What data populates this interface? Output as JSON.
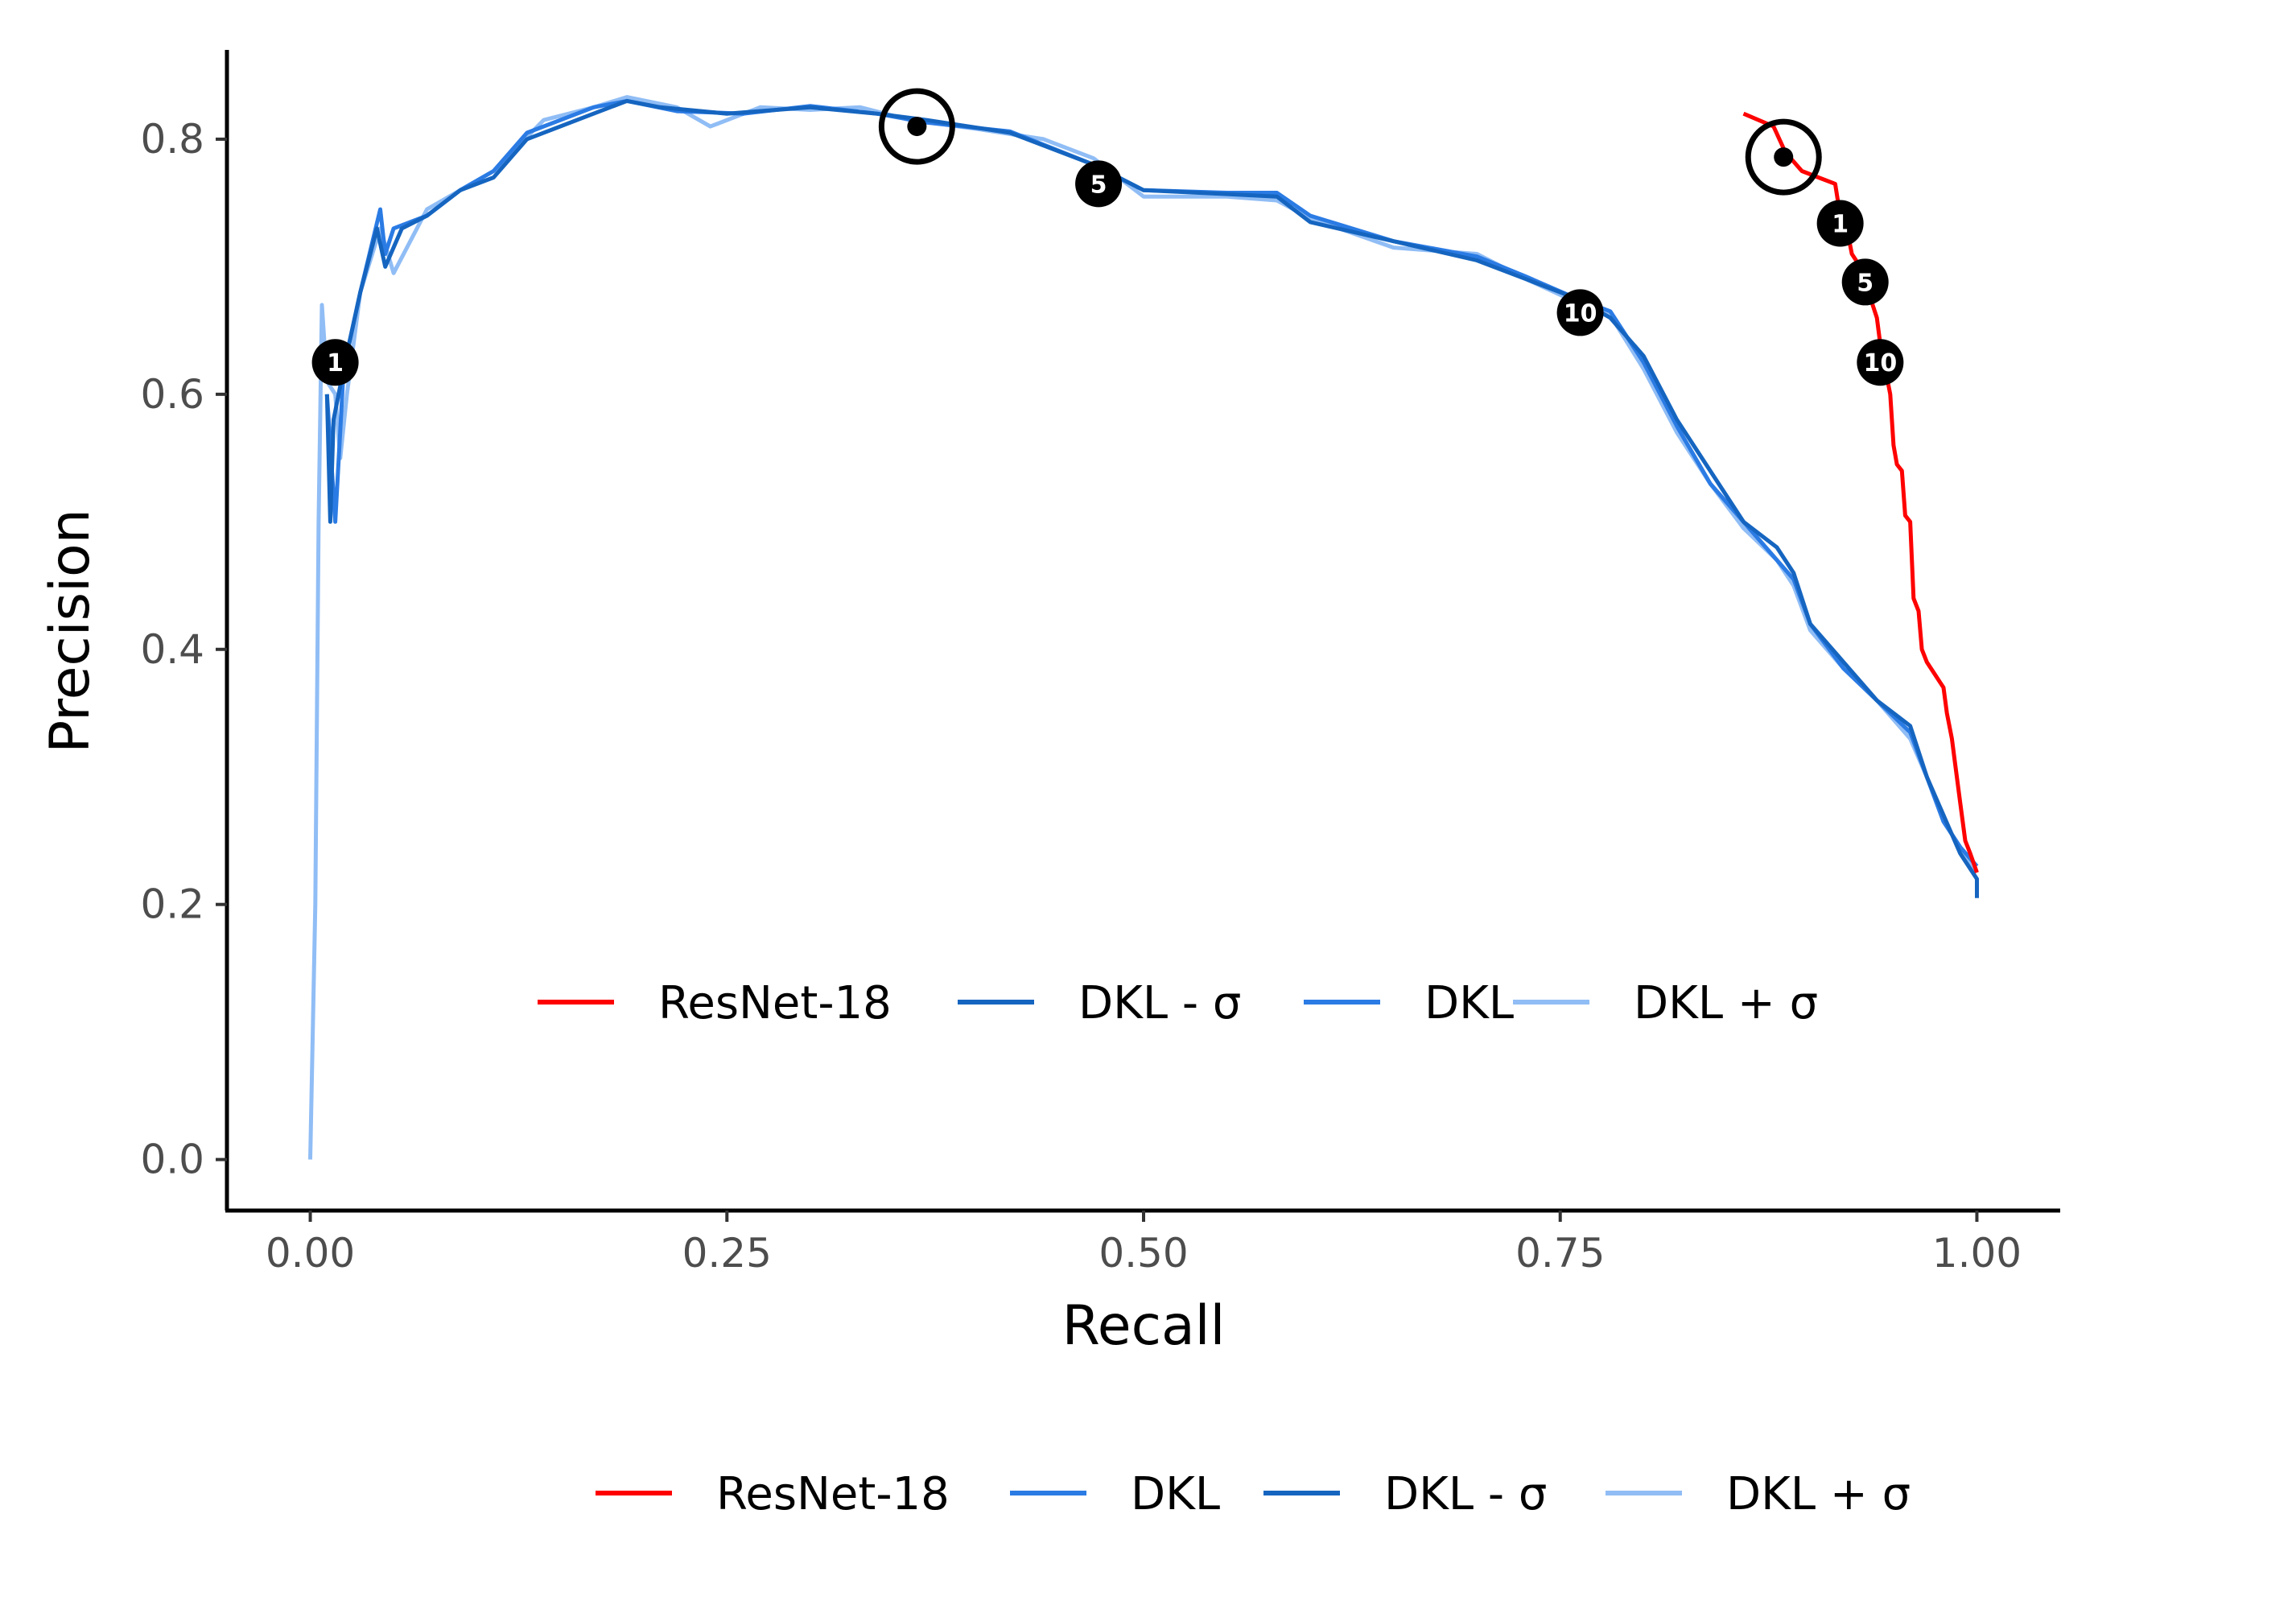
{
  "chart_data": {
    "type": "line",
    "xlabel": "Recall",
    "ylabel": "Precision",
    "xlim": [
      -0.05,
      1.05
    ],
    "ylim": [
      -0.04,
      0.87
    ],
    "x_ticks": [
      "0.00",
      "0.25",
      "0.50",
      "0.75",
      "1.00"
    ],
    "x_tick_values": [
      0,
      0.25,
      0.5,
      0.75,
      1.0
    ],
    "y_ticks": [
      "0.0",
      "0.2",
      "0.4",
      "0.6",
      "0.8"
    ],
    "y_tick_values": [
      0,
      0.2,
      0.4,
      0.6,
      0.8
    ],
    "grid": false,
    "series": [
      {
        "name": "ResNet-18",
        "color": "#ff0000",
        "points": [
          [
            0.86,
            0.82
          ],
          [
            0.878,
            0.81
          ],
          [
            0.885,
            0.79
          ],
          [
            0.895,
            0.775
          ],
          [
            0.905,
            0.77
          ],
          [
            0.915,
            0.765
          ],
          [
            0.918,
            0.74
          ],
          [
            0.922,
            0.73
          ],
          [
            0.925,
            0.71
          ],
          [
            0.93,
            0.7
          ],
          [
            0.935,
            0.68
          ],
          [
            0.94,
            0.66
          ],
          [
            0.942,
            0.64
          ],
          [
            0.945,
            0.62
          ],
          [
            0.948,
            0.6
          ],
          [
            0.95,
            0.56
          ],
          [
            0.952,
            0.545
          ],
          [
            0.955,
            0.54
          ],
          [
            0.957,
            0.505
          ],
          [
            0.96,
            0.5
          ],
          [
            0.962,
            0.44
          ],
          [
            0.965,
            0.43
          ],
          [
            0.967,
            0.4
          ],
          [
            0.97,
            0.39
          ],
          [
            0.975,
            0.38
          ],
          [
            0.98,
            0.37
          ],
          [
            0.982,
            0.35
          ],
          [
            0.985,
            0.33
          ],
          [
            0.987,
            0.31
          ],
          [
            0.99,
            0.28
          ],
          [
            0.993,
            0.25
          ],
          [
            0.996,
            0.24
          ],
          [
            1.0,
            0.225
          ]
        ]
      },
      {
        "name": "DKL - σ",
        "color": "#1565c0",
        "points": [
          [
            0.01,
            0.6
          ],
          [
            0.012,
            0.5
          ],
          [
            0.014,
            0.58
          ],
          [
            0.02,
            0.62
          ],
          [
            0.03,
            0.68
          ],
          [
            0.04,
            0.73
          ],
          [
            0.045,
            0.7
          ],
          [
            0.055,
            0.73
          ],
          [
            0.07,
            0.74
          ],
          [
            0.09,
            0.76
          ],
          [
            0.11,
            0.77
          ],
          [
            0.13,
            0.8
          ],
          [
            0.15,
            0.81
          ],
          [
            0.17,
            0.82
          ],
          [
            0.19,
            0.83
          ],
          [
            0.21,
            0.825
          ],
          [
            0.25,
            0.82
          ],
          [
            0.3,
            0.825
          ],
          [
            0.34,
            0.82
          ],
          [
            0.37,
            0.815
          ],
          [
            0.42,
            0.805
          ],
          [
            0.47,
            0.78
          ],
          [
            0.5,
            0.76
          ],
          [
            0.55,
            0.757
          ],
          [
            0.58,
            0.755
          ],
          [
            0.6,
            0.735
          ],
          [
            0.65,
            0.72
          ],
          [
            0.7,
            0.705
          ],
          [
            0.73,
            0.69
          ],
          [
            0.76,
            0.675
          ],
          [
            0.78,
            0.66
          ],
          [
            0.8,
            0.63
          ],
          [
            0.82,
            0.58
          ],
          [
            0.84,
            0.54
          ],
          [
            0.86,
            0.5
          ],
          [
            0.88,
            0.48
          ],
          [
            0.89,
            0.46
          ],
          [
            0.9,
            0.42
          ],
          [
            0.92,
            0.39
          ],
          [
            0.94,
            0.36
          ],
          [
            0.96,
            0.34
          ],
          [
            0.97,
            0.3
          ],
          [
            0.98,
            0.27
          ],
          [
            0.99,
            0.24
          ],
          [
            1.0,
            0.22
          ],
          [
            1.0,
            0.205
          ]
        ]
      },
      {
        "name": "DKL",
        "color": "#2b7be4",
        "points": [
          [
            0.01,
            0.6
          ],
          [
            0.015,
            0.5
          ],
          [
            0.02,
            0.62
          ],
          [
            0.03,
            0.68
          ],
          [
            0.042,
            0.745
          ],
          [
            0.045,
            0.71
          ],
          [
            0.05,
            0.73
          ],
          [
            0.07,
            0.74
          ],
          [
            0.09,
            0.76
          ],
          [
            0.11,
            0.775
          ],
          [
            0.13,
            0.805
          ],
          [
            0.15,
            0.815
          ],
          [
            0.17,
            0.825
          ],
          [
            0.19,
            0.83
          ],
          [
            0.22,
            0.822
          ],
          [
            0.26,
            0.82
          ],
          [
            0.3,
            0.826
          ],
          [
            0.34,
            0.82
          ],
          [
            0.37,
            0.813
          ],
          [
            0.42,
            0.806
          ],
          [
            0.47,
            0.78
          ],
          [
            0.5,
            0.76
          ],
          [
            0.55,
            0.758
          ],
          [
            0.58,
            0.758
          ],
          [
            0.6,
            0.74
          ],
          [
            0.65,
            0.72
          ],
          [
            0.7,
            0.708
          ],
          [
            0.73,
            0.692
          ],
          [
            0.76,
            0.675
          ],
          [
            0.78,
            0.665
          ],
          [
            0.8,
            0.625
          ],
          [
            0.82,
            0.575
          ],
          [
            0.84,
            0.53
          ],
          [
            0.86,
            0.5
          ],
          [
            0.88,
            0.47
          ],
          [
            0.89,
            0.455
          ],
          [
            0.9,
            0.42
          ],
          [
            0.92,
            0.385
          ],
          [
            0.94,
            0.36
          ],
          [
            0.96,
            0.335
          ],
          [
            0.97,
            0.3
          ],
          [
            0.98,
            0.265
          ],
          [
            0.99,
            0.245
          ],
          [
            1.0,
            0.23
          ]
        ]
      },
      {
        "name": "DKL + σ",
        "color": "#90bdf5",
        "points": [
          [
            0.0,
            0.0
          ],
          [
            0.003,
            0.2
          ],
          [
            0.005,
            0.5
          ],
          [
            0.007,
            0.67
          ],
          [
            0.01,
            0.61
          ],
          [
            0.015,
            0.6
          ],
          [
            0.018,
            0.55
          ],
          [
            0.022,
            0.6
          ],
          [
            0.03,
            0.68
          ],
          [
            0.042,
            0.73
          ],
          [
            0.05,
            0.695
          ],
          [
            0.07,
            0.745
          ],
          [
            0.09,
            0.76
          ],
          [
            0.11,
            0.775
          ],
          [
            0.14,
            0.815
          ],
          [
            0.17,
            0.825
          ],
          [
            0.19,
            0.833
          ],
          [
            0.22,
            0.825
          ],
          [
            0.24,
            0.81
          ],
          [
            0.27,
            0.825
          ],
          [
            0.3,
            0.823
          ],
          [
            0.33,
            0.825
          ],
          [
            0.36,
            0.815
          ],
          [
            0.4,
            0.808
          ],
          [
            0.44,
            0.8
          ],
          [
            0.47,
            0.785
          ],
          [
            0.5,
            0.755
          ],
          [
            0.55,
            0.755
          ],
          [
            0.58,
            0.752
          ],
          [
            0.6,
            0.738
          ],
          [
            0.65,
            0.715
          ],
          [
            0.7,
            0.71
          ],
          [
            0.73,
            0.69
          ],
          [
            0.76,
            0.672
          ],
          [
            0.78,
            0.662
          ],
          [
            0.8,
            0.62
          ],
          [
            0.82,
            0.57
          ],
          [
            0.84,
            0.53
          ],
          [
            0.86,
            0.495
          ],
          [
            0.88,
            0.47
          ],
          [
            0.89,
            0.45
          ],
          [
            0.9,
            0.415
          ],
          [
            0.92,
            0.385
          ],
          [
            0.94,
            0.36
          ],
          [
            0.96,
            0.33
          ],
          [
            0.97,
            0.3
          ],
          [
            0.98,
            0.265
          ],
          [
            0.99,
            0.245
          ],
          [
            1.0,
            0.225
          ]
        ]
      }
    ],
    "markers": [
      {
        "series": "DKL",
        "label": "1",
        "x": 0.015,
        "y": 0.625
      },
      {
        "series": "DKL",
        "label": "5",
        "x": 0.473,
        "y": 0.765
      },
      {
        "series": "DKL",
        "label": "10",
        "x": 0.762,
        "y": 0.664
      },
      {
        "series": "ResNet-18",
        "label": "1",
        "x": 0.918,
        "y": 0.734
      },
      {
        "series": "ResNet-18",
        "label": "5",
        "x": 0.933,
        "y": 0.688
      },
      {
        "series": "ResNet-18",
        "label": "10",
        "x": 0.942,
        "y": 0.625
      }
    ],
    "target_markers": [
      {
        "series": "DKL",
        "x": 0.364,
        "y": 0.81
      },
      {
        "series": "ResNet-18",
        "x": 0.884,
        "y": 0.786
      }
    ],
    "legends": [
      {
        "placement": "inside-bottom-center",
        "entries": [
          {
            "name": "ResNet-18",
            "color": "#ff0000"
          },
          {
            "name": "DKL - σ",
            "color": "#1565c0"
          },
          {
            "name": "DKL",
            "color": "#2b7be4"
          },
          {
            "name": "DKL + σ",
            "color": "#90bdf5"
          }
        ]
      },
      {
        "placement": "bottom-center",
        "entries": [
          {
            "name": "ResNet-18",
            "color": "#ff0000"
          },
          {
            "name": "DKL",
            "color": "#2b7be4"
          },
          {
            "name": "DKL - σ",
            "color": "#1565c0"
          },
          {
            "name": "DKL + σ",
            "color": "#90bdf5"
          }
        ]
      }
    ]
  }
}
